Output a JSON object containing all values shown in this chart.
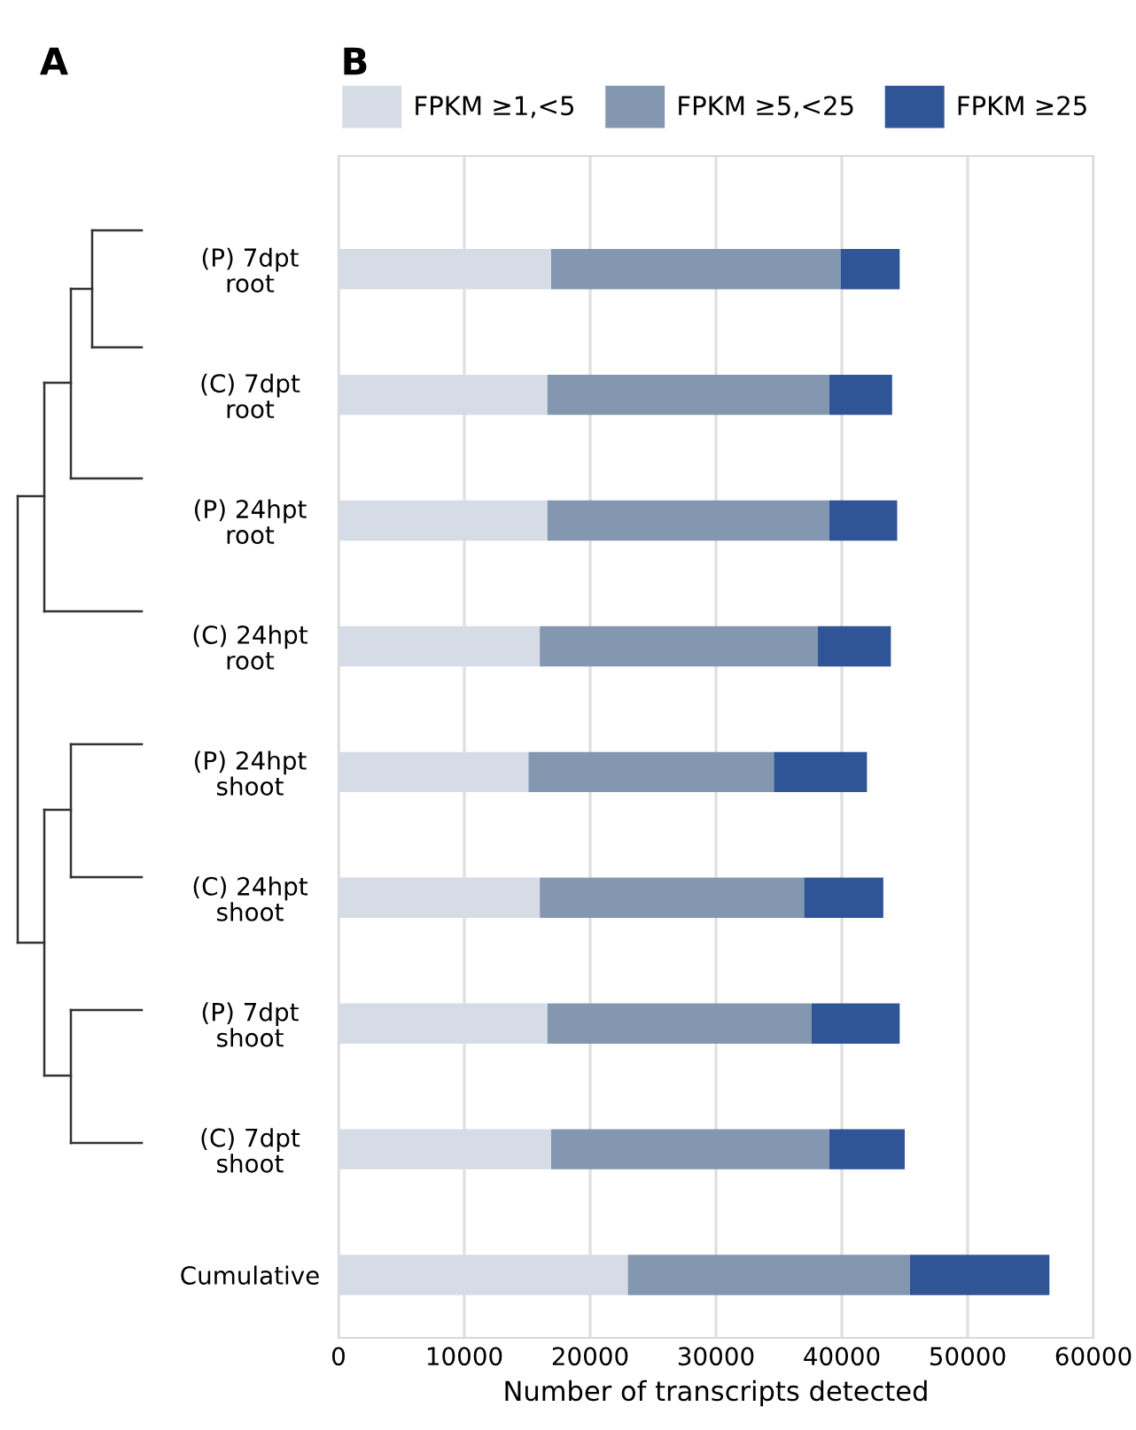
{
  "chart_data": {
    "type": "bar",
    "orientation": "horizontal",
    "stacked": true,
    "categories": [
      "(P) 7dpt\nroot",
      "(C) 7dpt\nroot",
      "(P) 24hpt\nroot",
      "(C) 24hpt\nroot",
      "(P) 24hpt\nshoot",
      "(C) 24hpt\nshoot",
      "(P) 7dpt\nshoot",
      "(C) 7dpt\nshoot",
      "Cumulative"
    ],
    "series": [
      {
        "name": "FPKM ≥1,<5",
        "color": "#d6dce5",
        "values": [
          16900,
          16600,
          16600,
          16000,
          15100,
          16000,
          16600,
          16900,
          23000
        ]
      },
      {
        "name": "FPKM ≥5,<25",
        "color": "#8497b0",
        "values": [
          23000,
          22400,
          22400,
          22100,
          19500,
          21000,
          21000,
          22100,
          22400
        ]
      },
      {
        "name": "FPKM ≥25",
        "color": "#2f5597",
        "values": [
          4700,
          5000,
          5400,
          5800,
          7400,
          6300,
          7000,
          6000,
          11100
        ]
      }
    ],
    "xlabel": "Number of transcripts detected",
    "xlim": [
      0,
      60000
    ],
    "xticks": [
      0,
      10000,
      20000,
      30000,
      40000,
      50000,
      60000
    ],
    "grid": "x",
    "legend": "top",
    "annotations": [
      "A",
      "B"
    ]
  }
}
